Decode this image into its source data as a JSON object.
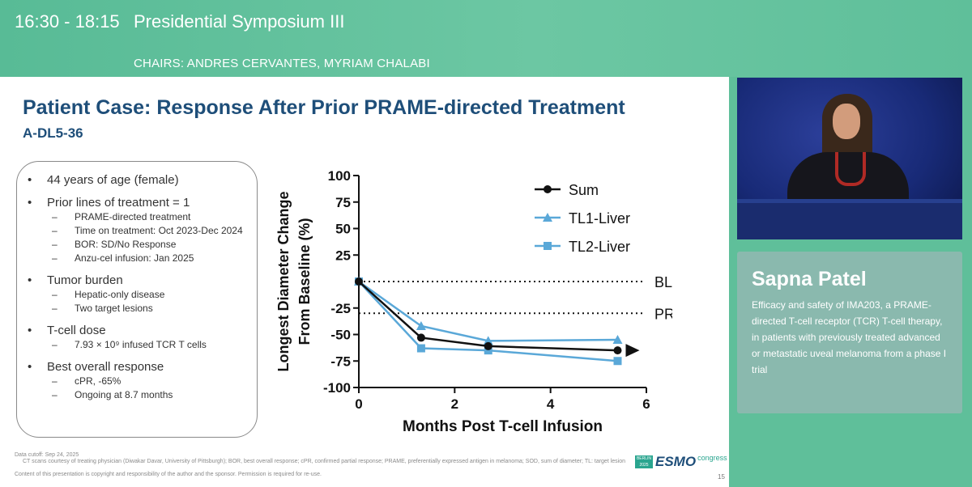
{
  "session": {
    "time": "16:30 - 18:15",
    "title": "Presidential Symposium III",
    "chairs": "CHAIRS: ANDRES CERVANTES, MYRIAM CHALABI"
  },
  "slide": {
    "title": "Patient Case: Response After Prior PRAME-directed Treatment",
    "subtitle": "A-DL5-36",
    "case_items": [
      {
        "label": "44 years of age (female)",
        "subs": []
      },
      {
        "label": "Prior lines of treatment = 1",
        "subs": [
          "PRAME-directed treatment",
          "Time on treatment: Oct 2023-Dec 2024",
          "BOR: SD/No Response",
          "Anzu-cel infusion: Jan 2025"
        ]
      },
      {
        "label": "Tumor burden",
        "subs": [
          "Hepatic-only disease",
          "Two target lesions"
        ]
      },
      {
        "label": "T-cell dose",
        "subs": [
          "7.93 × 10⁹ infused TCR T cells"
        ]
      },
      {
        "label": "Best overall response",
        "subs": [
          "cPR, -65%",
          "Ongoing at 8.7 months"
        ]
      }
    ],
    "footnotes": [
      "Data cutoff: Sep 24, 2025",
      "CT scans courtesy of treating physician (Diwakar Davar, University of Pittsburgh); BOR, best overall response; cPR, confirmed partial response; PRAME, preferentially expressed antigen in melanoma; SOD, sum of diameter; TL: target lesion",
      "Content of this presentation is copyright and responsibility of the author and the sponsor. Permission is required for re-use."
    ],
    "logo": {
      "city": "BERLIN 2025",
      "name": "ESMO",
      "suffix": "congress"
    },
    "slide_number": "15"
  },
  "chart_data": {
    "type": "line",
    "xlabel": "Months Post T-cell Infusion",
    "ylabel": "Longest Diameter Change From Baseline (%)",
    "xlim": [
      0,
      6
    ],
    "ylim": [
      -100,
      100
    ],
    "xticks": [
      "0",
      "2",
      "4",
      "6"
    ],
    "yticks": [
      {
        "v": 100,
        "label": "100"
      },
      {
        "v": 75,
        "label": "75"
      },
      {
        "v": 50,
        "label": "50"
      },
      {
        "v": 25,
        "label": "25"
      },
      {
        "v": -25,
        "label": "-25"
      },
      {
        "v": -50,
        "label": "-50"
      },
      {
        "v": -75,
        "label": "-75"
      },
      {
        "v": -100,
        "label": "-100"
      }
    ],
    "reference_lines": [
      {
        "label": "BL",
        "y": 0
      },
      {
        "label": "PR",
        "y": -30
      }
    ],
    "legend_position": "top-right",
    "series": [
      {
        "name": "Sum",
        "marker": "circle",
        "color": "#111111",
        "x": [
          0,
          1.3,
          2.7,
          5.4
        ],
        "y": [
          0,
          -53,
          -61,
          -65
        ],
        "ongoing_arrow": true
      },
      {
        "name": "TL1-Liver",
        "marker": "triangle",
        "color": "#5aa8d8",
        "x": [
          0,
          1.3,
          2.7,
          5.4
        ],
        "y": [
          0,
          -42,
          -56,
          -55
        ]
      },
      {
        "name": "TL2-Liver",
        "marker": "square",
        "color": "#5aa8d8",
        "x": [
          0,
          1.3,
          2.7,
          5.4
        ],
        "y": [
          0,
          -63,
          -65,
          -75
        ]
      }
    ]
  },
  "speaker": {
    "name": "Sapna Patel",
    "talk": "Efficacy and safety of IMA203, a PRAME-directed T-cell receptor (TCR) T-cell therapy, in patients with previously treated advanced or metastatic uveal melanoma from a phase I trial"
  }
}
